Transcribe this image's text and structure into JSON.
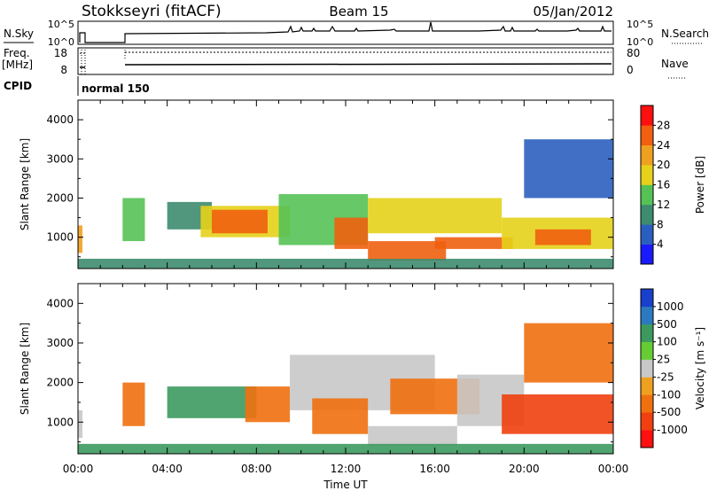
{
  "header": {
    "station": "Stokkseyri (fitACF)",
    "beam": "Beam 15",
    "date": "05/Jan/2012"
  },
  "strips": {
    "nsky_label": "N.Sky",
    "nsky_ticks": [
      "10^5",
      "10^0"
    ],
    "nsearch_label": "N.Search",
    "nsearch_ticks": [
      "10^5",
      "10^0"
    ],
    "freq_label": "Freq.",
    "freq_unit": "[MHz]",
    "freq_ticks": [
      "18",
      "8"
    ],
    "nave_label": "Nave",
    "nave_ticks": [
      "80",
      "0"
    ],
    "cpid_label": "CPID",
    "cpid_value": "normal 150"
  },
  "x_axis": {
    "label": "Time UT",
    "range_hours": [
      0,
      24
    ],
    "ticks": [
      "00:00",
      "04:00",
      "08:00",
      "12:00",
      "16:00",
      "20:00",
      "00:00"
    ]
  },
  "colors": {
    "power_scale": [
      "#1a1aff",
      "#2b5fbf",
      "#3d8c6f",
      "#55c255",
      "#e6d21a",
      "#f0a020",
      "#f06010",
      "#ff1010"
    ],
    "velocity_scale": [
      "#1a3fcc",
      "#2b7abf",
      "#3d9a5f",
      "#66cc33",
      "#c8c8c8",
      "#f0a020",
      "#f07010",
      "#f04010",
      "#ff1010"
    ]
  },
  "chart_data": [
    {
      "type": "heatmap",
      "panel": "power",
      "ylabel": "Slant Range [km]",
      "ylim": [
        200,
        4500
      ],
      "yticks": [
        "1000",
        "2000",
        "3000",
        "4000"
      ],
      "colorbar_label": "Power [dB]",
      "colorbar_ticks": [
        "28",
        "24",
        "20",
        "16",
        "12",
        "8",
        "4"
      ],
      "colorbar_range": [
        0,
        32
      ],
      "regions": [
        {
          "t": [
            0.0,
            0.2
          ],
          "r": [
            600,
            1300
          ],
          "v": 20
        },
        {
          "t": [
            2.0,
            3.0
          ],
          "r": [
            900,
            2000
          ],
          "v": 12
        },
        {
          "t": [
            4.0,
            6.0
          ],
          "r": [
            1200,
            1900
          ],
          "v": 9
        },
        {
          "t": [
            5.5,
            9.5
          ],
          "r": [
            1000,
            1800
          ],
          "v": 16
        },
        {
          "t": [
            6.0,
            8.5
          ],
          "r": [
            1100,
            1700
          ],
          "v": 26
        },
        {
          "t": [
            9.0,
            13.0
          ],
          "r": [
            800,
            2100
          ],
          "v": 15
        },
        {
          "t": [
            11.5,
            13.0
          ],
          "r": [
            700,
            1500
          ],
          "v": 25
        },
        {
          "t": [
            13.0,
            16.5
          ],
          "r": [
            400,
            900
          ],
          "v": 27
        },
        {
          "t": [
            13.0,
            19.0
          ],
          "r": [
            1100,
            2000
          ],
          "v": 18
        },
        {
          "t": [
            16.0,
            19.5
          ],
          "r": [
            700,
            1000
          ],
          "v": 24
        },
        {
          "t": [
            19.0,
            24.0
          ],
          "r": [
            700,
            1500
          ],
          "v": 17
        },
        {
          "t": [
            20.5,
            23.0
          ],
          "r": [
            800,
            1200
          ],
          "v": 25
        },
        {
          "t": [
            20.0,
            24.0
          ],
          "r": [
            2000,
            3500
          ],
          "v": 6
        },
        {
          "t": [
            0.0,
            24.0
          ],
          "r": [
            200,
            450
          ],
          "v": 10
        }
      ]
    },
    {
      "type": "heatmap",
      "panel": "velocity",
      "ylabel": "Slant Range [km]",
      "ylim": [
        200,
        4500
      ],
      "yticks": [
        "1000",
        "2000",
        "3000",
        "4000"
      ],
      "colorbar_label": "Velocity [m s⁻¹]",
      "colorbar_ticks": [
        "1000",
        "500",
        "100",
        "25",
        "-25",
        "-100",
        "-500",
        "-1000"
      ],
      "regions": [
        {
          "t": [
            0.0,
            0.2
          ],
          "r": [
            600,
            1300
          ],
          "v": 0
        },
        {
          "t": [
            2.0,
            3.0
          ],
          "r": [
            900,
            2000
          ],
          "v": -300
        },
        {
          "t": [
            4.0,
            8.0
          ],
          "r": [
            1100,
            1900
          ],
          "v": 150
        },
        {
          "t": [
            7.5,
            9.5
          ],
          "r": [
            1000,
            1900
          ],
          "v": -200
        },
        {
          "t": [
            9.5,
            16.0
          ],
          "r": [
            1300,
            2700
          ],
          "v": 0
        },
        {
          "t": [
            10.5,
            13.0
          ],
          "r": [
            700,
            1600
          ],
          "v": -400
        },
        {
          "t": [
            13.0,
            17.0
          ],
          "r": [
            400,
            900
          ],
          "v": 0
        },
        {
          "t": [
            14.0,
            18.0
          ],
          "r": [
            1200,
            2100
          ],
          "v": -200
        },
        {
          "t": [
            17.0,
            20.0
          ],
          "r": [
            900,
            2200
          ],
          "v": 0
        },
        {
          "t": [
            19.0,
            24.0
          ],
          "r": [
            700,
            1700
          ],
          "v": -600
        },
        {
          "t": [
            20.0,
            24.0
          ],
          "r": [
            2000,
            3500
          ],
          "v": -300
        },
        {
          "t": [
            0.0,
            24.0
          ],
          "r": [
            200,
            450
          ],
          "v": 150
        }
      ]
    }
  ]
}
